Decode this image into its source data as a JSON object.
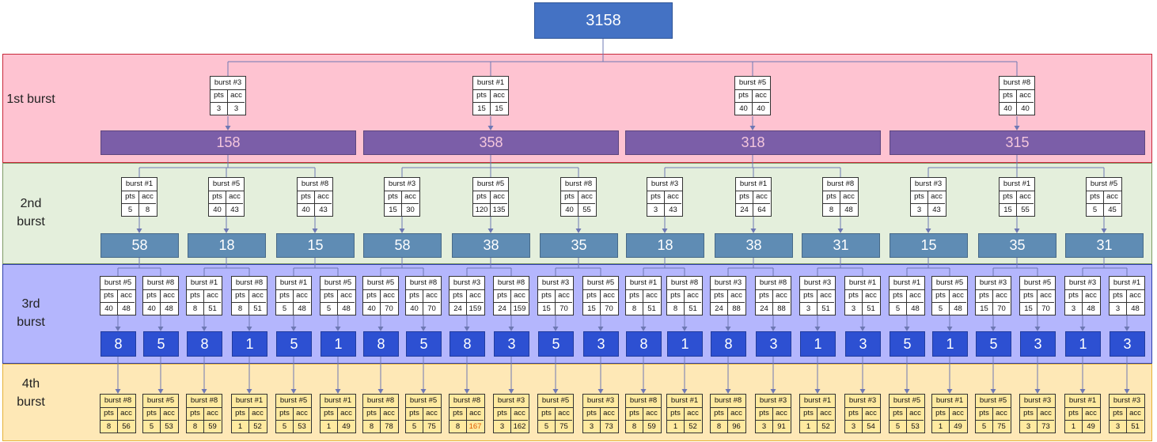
{
  "root": {
    "value": "3158"
  },
  "colors": {
    "band_1": "#fec3d1",
    "band_1_border": "#c8293a",
    "band_2": "#e4efdc",
    "band_2_border": "#7e9a66",
    "band_3": "#b4b6fd",
    "band_3_border": "#2e3fa8",
    "band_4": "#fee8b6",
    "band_4_border": "#e6b237",
    "root_fill": "#4472c4",
    "node_1_fill": "#7b5ea8",
    "node_1_text": "#f3c6dc",
    "node_2_fill": "#5f8cb4",
    "node_3_fill": "#2d50d2",
    "connector": "#6e78b4",
    "card_4_fill": "#ffeaa0",
    "highlight_text": "#e05a00"
  },
  "card_labels": {
    "pts": "pts",
    "acc": "acc"
  },
  "levels": [
    {
      "label": "1st burst",
      "nodes": [
        {
          "value": "158",
          "card": {
            "burst": "burst #3",
            "pts": "3",
            "acc": "3"
          }
        },
        {
          "value": "358",
          "card": {
            "burst": "burst #1",
            "pts": "15",
            "acc": "15"
          }
        },
        {
          "value": "318",
          "card": {
            "burst": "burst #5",
            "pts": "40",
            "acc": "40"
          }
        },
        {
          "value": "315",
          "card": {
            "burst": "burst #8",
            "pts": "40",
            "acc": "40"
          }
        }
      ]
    },
    {
      "label": "2nd burst",
      "nodes": [
        {
          "value": "58",
          "card": {
            "burst": "burst #1",
            "pts": "5",
            "acc": "8"
          }
        },
        {
          "value": "18",
          "card": {
            "burst": "burst #5",
            "pts": "40",
            "acc": "43"
          }
        },
        {
          "value": "15",
          "card": {
            "burst": "burst #8",
            "pts": "40",
            "acc": "43"
          }
        },
        {
          "value": "58",
          "card": {
            "burst": "burst #3",
            "pts": "15",
            "acc": "30"
          }
        },
        {
          "value": "38",
          "card": {
            "burst": "burst #5",
            "pts": "120",
            "acc": "135"
          }
        },
        {
          "value": "35",
          "card": {
            "burst": "burst #8",
            "pts": "40",
            "acc": "55"
          }
        },
        {
          "value": "18",
          "card": {
            "burst": "burst #3",
            "pts": "3",
            "acc": "43"
          }
        },
        {
          "value": "38",
          "card": {
            "burst": "burst #1",
            "pts": "24",
            "acc": "64"
          }
        },
        {
          "value": "31",
          "card": {
            "burst": "burst #8",
            "pts": "8",
            "acc": "48"
          }
        },
        {
          "value": "15",
          "card": {
            "burst": "burst #3",
            "pts": "3",
            "acc": "43"
          }
        },
        {
          "value": "35",
          "card": {
            "burst": "burst #1",
            "pts": "15",
            "acc": "55"
          }
        },
        {
          "value": "31",
          "card": {
            "burst": "burst #5",
            "pts": "5",
            "acc": "45"
          }
        }
      ]
    },
    {
      "label": "3rd burst",
      "nodes": [
        {
          "value": "8",
          "card": {
            "burst": "burst #5",
            "pts": "40",
            "acc": "48"
          }
        },
        {
          "value": "5",
          "card": {
            "burst": "burst #8",
            "pts": "40",
            "acc": "48"
          }
        },
        {
          "value": "8",
          "card": {
            "burst": "burst #1",
            "pts": "8",
            "acc": "51"
          }
        },
        {
          "value": "1",
          "card": {
            "burst": "burst #8",
            "pts": "8",
            "acc": "51"
          }
        },
        {
          "value": "5",
          "card": {
            "burst": "burst #1",
            "pts": "5",
            "acc": "48"
          }
        },
        {
          "value": "1",
          "card": {
            "burst": "burst #5",
            "pts": "5",
            "acc": "48"
          }
        },
        {
          "value": "8",
          "card": {
            "burst": "burst #5",
            "pts": "40",
            "acc": "70"
          }
        },
        {
          "value": "5",
          "card": {
            "burst": "burst #8",
            "pts": "40",
            "acc": "70"
          }
        },
        {
          "value": "8",
          "card": {
            "burst": "burst #3",
            "pts": "24",
            "acc": "159"
          }
        },
        {
          "value": "3",
          "card": {
            "burst": "burst #8",
            "pts": "24",
            "acc": "159"
          }
        },
        {
          "value": "5",
          "card": {
            "burst": "burst #3",
            "pts": "15",
            "acc": "70"
          }
        },
        {
          "value": "3",
          "card": {
            "burst": "burst #5",
            "pts": "15",
            "acc": "70"
          }
        },
        {
          "value": "8",
          "card": {
            "burst": "burst #1",
            "pts": "8",
            "acc": "51"
          }
        },
        {
          "value": "1",
          "card": {
            "burst": "burst #8",
            "pts": "8",
            "acc": "51"
          }
        },
        {
          "value": "8",
          "card": {
            "burst": "burst #3",
            "pts": "24",
            "acc": "88"
          }
        },
        {
          "value": "3",
          "card": {
            "burst": "burst #8",
            "pts": "24",
            "acc": "88"
          }
        },
        {
          "value": "1",
          "card": {
            "burst": "burst #3",
            "pts": "3",
            "acc": "51"
          }
        },
        {
          "value": "3",
          "card": {
            "burst": "burst #1",
            "pts": "3",
            "acc": "51"
          }
        },
        {
          "value": "5",
          "card": {
            "burst": "burst #1",
            "pts": "5",
            "acc": "48"
          }
        },
        {
          "value": "1",
          "card": {
            "burst": "burst #5",
            "pts": "5",
            "acc": "48"
          }
        },
        {
          "value": "5",
          "card": {
            "burst": "burst #3",
            "pts": "15",
            "acc": "70"
          }
        },
        {
          "value": "3",
          "card": {
            "burst": "burst #5",
            "pts": "15",
            "acc": "70"
          }
        },
        {
          "value": "1",
          "card": {
            "burst": "burst #3",
            "pts": "3",
            "acc": "48"
          }
        },
        {
          "value": "3",
          "card": {
            "burst": "burst #1",
            "pts": "3",
            "acc": "48"
          }
        }
      ]
    },
    {
      "label": "4th burst",
      "cards": [
        {
          "burst": "burst #8",
          "pts": "8",
          "acc": "56"
        },
        {
          "burst": "burst #5",
          "pts": "5",
          "acc": "53"
        },
        {
          "burst": "burst #8",
          "pts": "8",
          "acc": "59"
        },
        {
          "burst": "burst #1",
          "pts": "1",
          "acc": "52"
        },
        {
          "burst": "burst #5",
          "pts": "5",
          "acc": "53"
        },
        {
          "burst": "burst #1",
          "pts": "1",
          "acc": "49"
        },
        {
          "burst": "burst #8",
          "pts": "8",
          "acc": "78"
        },
        {
          "burst": "burst #5",
          "pts": "5",
          "acc": "75"
        },
        {
          "burst": "burst #8",
          "pts": "8",
          "acc": "167",
          "highlight": true
        },
        {
          "burst": "burst #3",
          "pts": "3",
          "acc": "162"
        },
        {
          "burst": "burst #5",
          "pts": "5",
          "acc": "75"
        },
        {
          "burst": "burst #3",
          "pts": "3",
          "acc": "73"
        },
        {
          "burst": "burst #8",
          "pts": "8",
          "acc": "59"
        },
        {
          "burst": "burst #1",
          "pts": "1",
          "acc": "52"
        },
        {
          "burst": "burst #8",
          "pts": "8",
          "acc": "96"
        },
        {
          "burst": "burst #3",
          "pts": "3",
          "acc": "91"
        },
        {
          "burst": "burst #1",
          "pts": "1",
          "acc": "52"
        },
        {
          "burst": "burst #3",
          "pts": "3",
          "acc": "54"
        },
        {
          "burst": "burst #5",
          "pts": "5",
          "acc": "53"
        },
        {
          "burst": "burst #1",
          "pts": "1",
          "acc": "49"
        },
        {
          "burst": "burst #5",
          "pts": "5",
          "acc": "75"
        },
        {
          "burst": "burst #3",
          "pts": "3",
          "acc": "73"
        },
        {
          "burst": "burst #1",
          "pts": "1",
          "acc": "49"
        },
        {
          "burst": "burst #3",
          "pts": "3",
          "acc": "51"
        }
      ]
    }
  ]
}
